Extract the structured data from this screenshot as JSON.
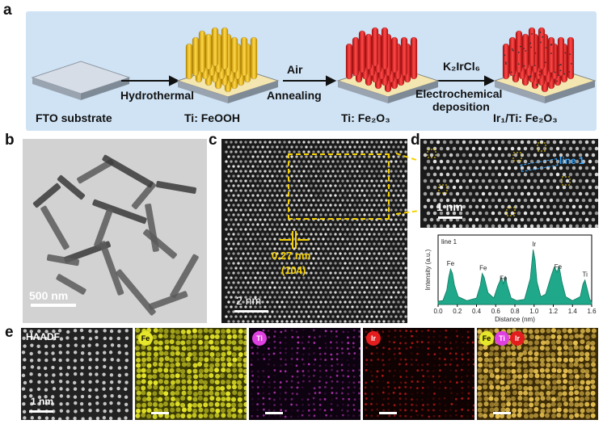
{
  "figure": {
    "panel_labels": {
      "a": "a",
      "b": "b",
      "c": "c",
      "d": "d",
      "e": "e"
    },
    "schematic": {
      "stages": [
        {
          "label": "FTO substrate"
        },
        {
          "label": "Ti: FeOOH"
        },
        {
          "label": "Ti: Fe₂O₃"
        },
        {
          "label": "Ir₁/Ti: Fe₂O₃"
        }
      ],
      "steps": [
        {
          "top": "",
          "bottom": "Hydrothermal"
        },
        {
          "top": "Air",
          "bottom": "Annealing"
        },
        {
          "top": "K₂IrCl₆",
          "bottom_line1": "Electrochemical",
          "bottom_line2": "deposition"
        }
      ],
      "colors": {
        "background": "#cfe3f5",
        "feooh": "#e8b90e",
        "fe2o3": "#dc1d1d",
        "substrate": "#b7bfc9"
      }
    },
    "panel_b": {
      "scale_bar": "500 nm"
    },
    "panel_c": {
      "scale_bar": "2 nm",
      "lattice_spacing": "0.27 nm",
      "plane": "(104)"
    },
    "panel_d": {
      "scale_bar": "1 nm",
      "line_label": "line 1"
    },
    "panel_e": {
      "maps": [
        {
          "label": "HAADF",
          "color": "#cfcfcf"
        },
        {
          "label": "Fe",
          "color": "#e6e62a"
        },
        {
          "label": "Ti",
          "color": "#e040e0"
        },
        {
          "label": "Ir",
          "color": "#e31d1d"
        },
        {
          "label": "Fe Ti Ir",
          "color": "#e6c050"
        }
      ],
      "scale_bar": "1 nm",
      "badges": {
        "fe": "Fe",
        "ti": "Ti",
        "ir": "Ir"
      }
    }
  },
  "chart_data": {
    "type": "line",
    "title": "line 1",
    "xlabel": "Distance (nm)",
    "ylabel": "Intensity (a.u.)",
    "xlim": [
      0.0,
      1.6
    ],
    "xticks": [
      "0.0",
      "0.2",
      "0.4",
      "0.6",
      "0.8",
      "1.0",
      "1.2",
      "1.4",
      "1.6"
    ],
    "series": [
      {
        "x": [
          0.0,
          0.05,
          0.09,
          0.11,
          0.13,
          0.15,
          0.17,
          0.21,
          0.3,
          0.4,
          0.44,
          0.46,
          0.48,
          0.52,
          0.58,
          0.62,
          0.66,
          0.68,
          0.7,
          0.72,
          0.76,
          0.82,
          0.9,
          0.96,
          0.99,
          1.01,
          1.03,
          1.07,
          1.12,
          1.18,
          1.21,
          1.24,
          1.26,
          1.29,
          1.33,
          1.4,
          1.48,
          1.51,
          1.53,
          1.55,
          1.58,
          1.62
        ],
        "values": [
          0.05,
          0.06,
          0.22,
          0.42,
          0.55,
          0.48,
          0.3,
          0.12,
          0.06,
          0.1,
          0.3,
          0.48,
          0.42,
          0.18,
          0.1,
          0.28,
          0.42,
          0.32,
          0.44,
          0.3,
          0.1,
          0.06,
          0.08,
          0.4,
          0.85,
          0.7,
          0.35,
          0.12,
          0.16,
          0.45,
          0.58,
          0.5,
          0.6,
          0.35,
          0.12,
          0.06,
          0.12,
          0.32,
          0.38,
          0.26,
          0.08,
          0.04
        ]
      }
    ],
    "peak_labels": [
      {
        "text": "Fe",
        "x": 0.13
      },
      {
        "text": "Fe",
        "x": 0.47
      },
      {
        "text": "Fe",
        "x": 0.68
      },
      {
        "text": "Ir",
        "x": 1.0
      },
      {
        "text": "Fe",
        "x": 1.25
      },
      {
        "text": "Ti",
        "x": 1.53
      }
    ],
    "colors": {
      "fill": "#1fa88a",
      "line": "#127a62"
    }
  }
}
